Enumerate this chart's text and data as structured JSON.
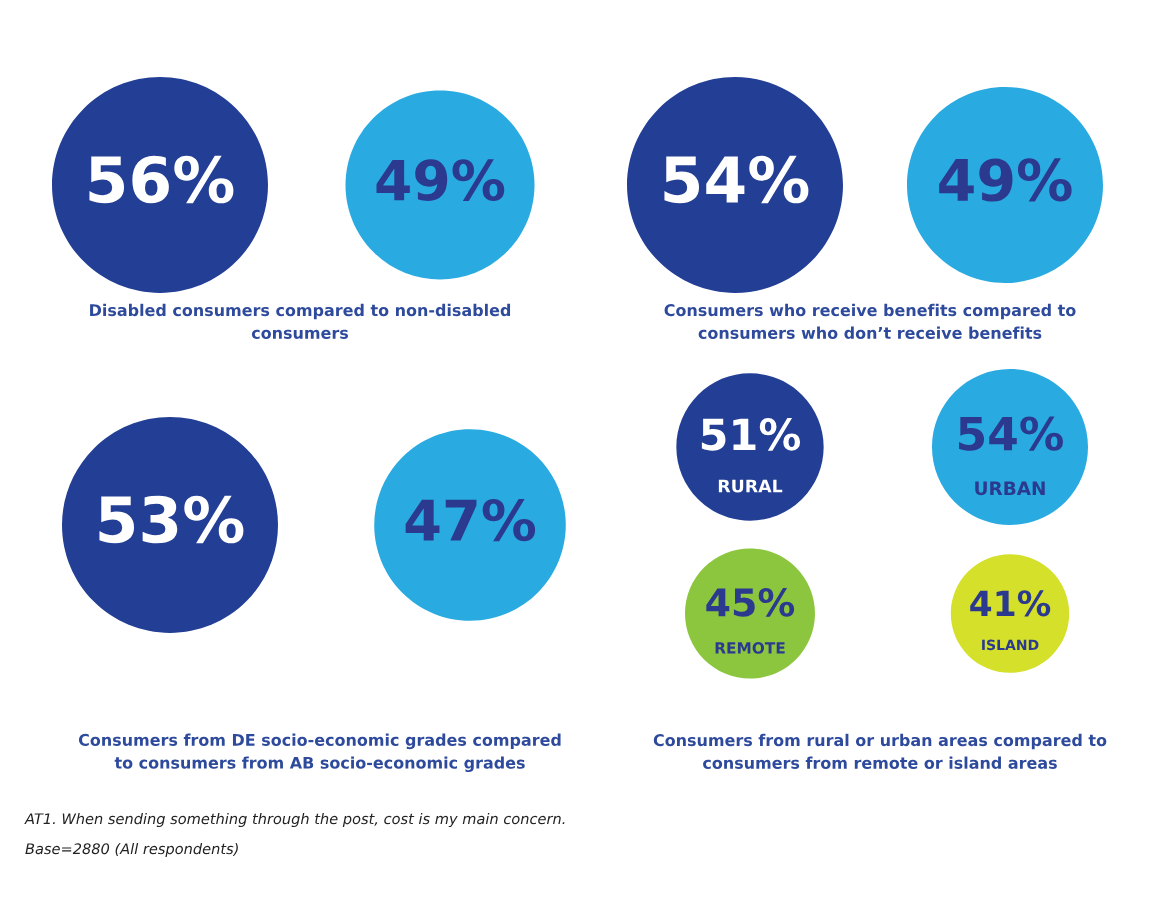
{
  "chart_data": [
    {
      "type": "other",
      "title": "Disabled consumers compared to non-disabled\nconsumers",
      "categories": [
        null,
        null
      ],
      "values": [
        56,
        49
      ],
      "value_labels": [
        "56%",
        "49%"
      ],
      "colors": [
        "#233f95",
        "#29aae1"
      ]
    },
    {
      "type": "other",
      "title": "Consumers who receive benefits compared to\nconsumers who don’t receive benefits",
      "categories": [
        null,
        null
      ],
      "values": [
        54,
        49
      ],
      "value_labels": [
        "54%",
        "49%"
      ],
      "colors": [
        "#233f95",
        "#29aae1"
      ]
    },
    {
      "type": "other",
      "title": "Consumers from DE socio-economic grades compared\nto consumers from AB socio-economic grades",
      "categories": [
        null,
        null
      ],
      "values": [
        53,
        47
      ],
      "value_labels": [
        "53%",
        "47%"
      ],
      "colors": [
        "#233f95",
        "#29aae1"
      ],
      "annotations": [
        "AT1. When sending something through the post, cost is my main concern.",
        "Base=2880 (All respondents)"
      ]
    },
    {
      "type": "other",
      "title": "Consumers from rural or urban areas compared to\nconsumers from remote or island areas",
      "categories": [
        "RURAL",
        "URBAN",
        "REMOTE",
        "ISLAND"
      ],
      "values": [
        51,
        54,
        45,
        41
      ],
      "value_labels": [
        "51%",
        "54%",
        "45%",
        "41%"
      ],
      "colors": [
        "#233f95",
        "#29aae1",
        "#8cc63f",
        "#d4e02a"
      ]
    }
  ]
}
